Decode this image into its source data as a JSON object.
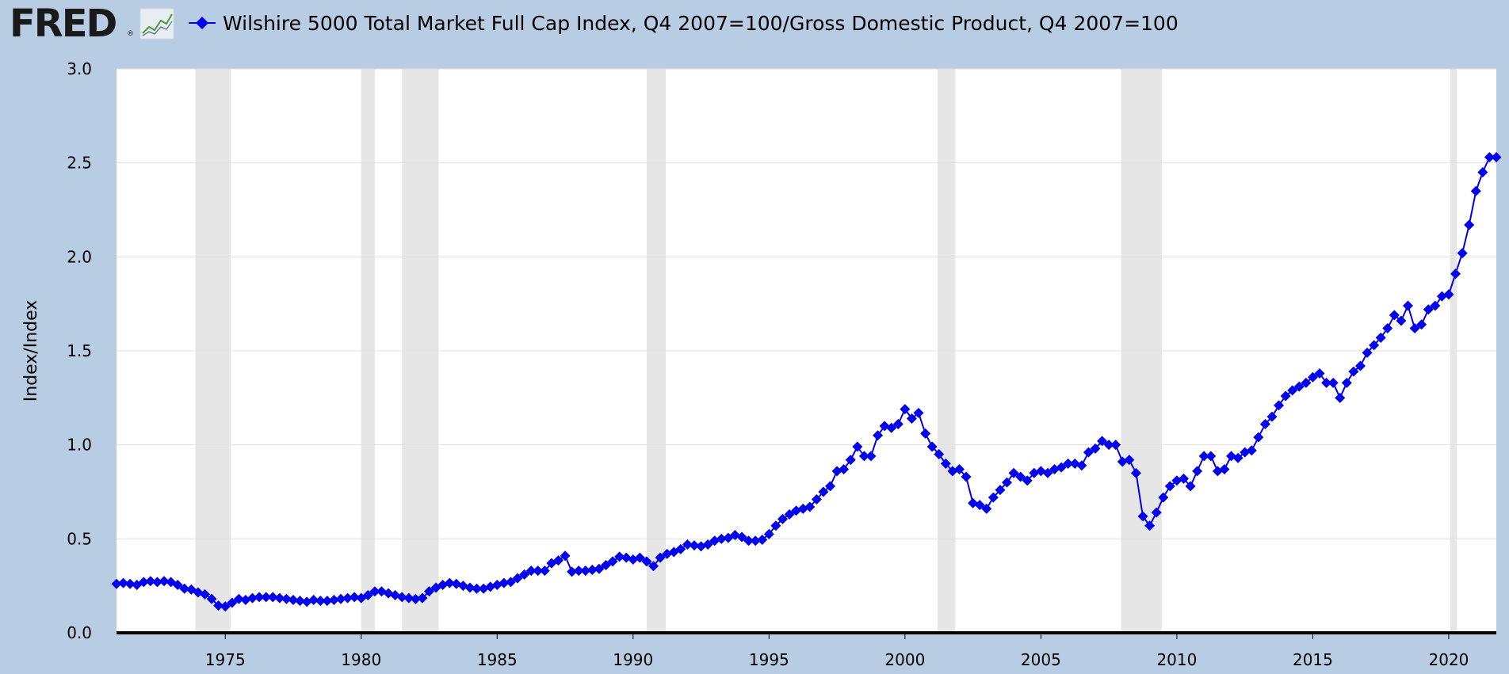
{
  "header": {
    "logo_text": "FRED",
    "logo_reg": "®",
    "legend_label": "Wilshire 5000 Total Market Full Cap Index, Q4 2007=100/Gross Domestic Product, Q4 2007=100"
  },
  "colors": {
    "background": "#b8cce4",
    "plot_bg": "#ffffff",
    "series": "#0000ee",
    "recession": "#e6e6e6",
    "grid": "#e0e0e0",
    "axis": "#000000"
  },
  "chart_data": {
    "type": "line",
    "ylabel": "Index/Index",
    "xlabel": "",
    "xlim": [
      1971.0,
      2021.75
    ],
    "ylim": [
      0,
      3.0
    ],
    "y_ticks": [
      "0.0",
      "0.5",
      "1.0",
      "1.5",
      "2.0",
      "2.5",
      "3.0"
    ],
    "x_ticks": [
      "1975",
      "1980",
      "1985",
      "1990",
      "1995",
      "2000",
      "2005",
      "2010",
      "2015",
      "2020"
    ],
    "grid": true,
    "recessions": [
      [
        1973.9,
        1975.2
      ],
      [
        1980.0,
        1980.5
      ],
      [
        1981.5,
        1982.85
      ],
      [
        1990.5,
        1991.2
      ],
      [
        2001.2,
        2001.85
      ],
      [
        2007.95,
        2009.45
      ],
      [
        2020.05,
        2020.3
      ]
    ],
    "series": [
      {
        "name": "Wilshire 5000 Total Market Full Cap Index, Q4 2007=100/Gross Domestic Product, Q4 2007=100",
        "marker": "diamond",
        "x": [
          1971.0,
          1971.25,
          1971.5,
          1971.75,
          1972.0,
          1972.25,
          1972.5,
          1972.75,
          1973.0,
          1973.25,
          1973.5,
          1973.75,
          1974.0,
          1974.25,
          1974.5,
          1974.75,
          1975.0,
          1975.25,
          1975.5,
          1975.75,
          1976.0,
          1976.25,
          1976.5,
          1976.75,
          1977.0,
          1977.25,
          1977.5,
          1977.75,
          1978.0,
          1978.25,
          1978.5,
          1978.75,
          1979.0,
          1979.25,
          1979.5,
          1979.75,
          1980.0,
          1980.25,
          1980.5,
          1980.75,
          1981.0,
          1981.25,
          1981.5,
          1981.75,
          1982.0,
          1982.25,
          1982.5,
          1982.75,
          1983.0,
          1983.25,
          1983.5,
          1983.75,
          1984.0,
          1984.25,
          1984.5,
          1984.75,
          1985.0,
          1985.25,
          1985.5,
          1985.75,
          1986.0,
          1986.25,
          1986.5,
          1986.75,
          1987.0,
          1987.25,
          1987.5,
          1987.75,
          1988.0,
          1988.25,
          1988.5,
          1988.75,
          1989.0,
          1989.25,
          1989.5,
          1989.75,
          1990.0,
          1990.25,
          1990.5,
          1990.75,
          1991.0,
          1991.25,
          1991.5,
          1991.75,
          1992.0,
          1992.25,
          1992.5,
          1992.75,
          1993.0,
          1993.25,
          1993.5,
          1993.75,
          1994.0,
          1994.25,
          1994.5,
          1994.75,
          1995.0,
          1995.25,
          1995.5,
          1995.75,
          1996.0,
          1996.25,
          1996.5,
          1996.75,
          1997.0,
          1997.25,
          1997.5,
          1997.75,
          1998.0,
          1998.25,
          1998.5,
          1998.75,
          1999.0,
          1999.25,
          1999.5,
          1999.75,
          2000.0,
          2000.25,
          2000.5,
          2000.75,
          2001.0,
          2001.25,
          2001.5,
          2001.75,
          2002.0,
          2002.25,
          2002.5,
          2002.75,
          2003.0,
          2003.25,
          2003.5,
          2003.75,
          2004.0,
          2004.25,
          2004.5,
          2004.75,
          2005.0,
          2005.25,
          2005.5,
          2005.75,
          2006.0,
          2006.25,
          2006.5,
          2006.75,
          2007.0,
          2007.25,
          2007.5,
          2007.75,
          2008.0,
          2008.25,
          2008.5,
          2008.75,
          2009.0,
          2009.25,
          2009.5,
          2009.75,
          2010.0,
          2010.25,
          2010.5,
          2010.75,
          2011.0,
          2011.25,
          2011.5,
          2011.75,
          2012.0,
          2012.25,
          2012.5,
          2012.75,
          2013.0,
          2013.25,
          2013.5,
          2013.75,
          2014.0,
          2014.25,
          2014.5,
          2014.75,
          2015.0,
          2015.25,
          2015.5,
          2015.75,
          2016.0,
          2016.25,
          2016.5,
          2016.75,
          2017.0,
          2017.25,
          2017.5,
          2017.75,
          2018.0,
          2018.25,
          2018.5,
          2018.75,
          2019.0,
          2019.25,
          2019.5,
          2019.75,
          2020.0,
          2020.25,
          2020.5,
          2020.75,
          2021.0,
          2021.25,
          2021.5,
          2021.75
        ],
        "y": [
          0.26,
          0.265,
          0.26,
          0.255,
          0.27,
          0.275,
          0.27,
          0.275,
          0.27,
          0.255,
          0.235,
          0.23,
          0.215,
          0.205,
          0.18,
          0.145,
          0.14,
          0.16,
          0.18,
          0.175,
          0.185,
          0.19,
          0.19,
          0.19,
          0.185,
          0.18,
          0.175,
          0.17,
          0.165,
          0.175,
          0.17,
          0.17,
          0.175,
          0.18,
          0.185,
          0.19,
          0.185,
          0.2,
          0.22,
          0.22,
          0.21,
          0.2,
          0.19,
          0.185,
          0.18,
          0.185,
          0.22,
          0.24,
          0.255,
          0.265,
          0.26,
          0.25,
          0.24,
          0.235,
          0.235,
          0.245,
          0.255,
          0.265,
          0.27,
          0.29,
          0.31,
          0.33,
          0.33,
          0.33,
          0.37,
          0.385,
          0.41,
          0.325,
          0.33,
          0.33,
          0.335,
          0.34,
          0.36,
          0.38,
          0.405,
          0.4,
          0.39,
          0.4,
          0.38,
          0.355,
          0.4,
          0.42,
          0.43,
          0.445,
          0.47,
          0.465,
          0.46,
          0.47,
          0.49,
          0.5,
          0.505,
          0.52,
          0.51,
          0.49,
          0.49,
          0.495,
          0.525,
          0.57,
          0.605,
          0.63,
          0.65,
          0.66,
          0.67,
          0.71,
          0.75,
          0.78,
          0.86,
          0.87,
          0.92,
          0.99,
          0.94,
          0.94,
          1.05,
          1.1,
          1.09,
          1.11,
          1.19,
          1.14,
          1.17,
          1.06,
          0.99,
          0.95,
          0.9,
          0.86,
          0.87,
          0.83,
          0.69,
          0.68,
          0.66,
          0.72,
          0.76,
          0.8,
          0.85,
          0.83,
          0.81,
          0.85,
          0.86,
          0.85,
          0.87,
          0.88,
          0.9,
          0.9,
          0.89,
          0.96,
          0.98,
          1.02,
          1.0,
          1.0,
          0.91,
          0.92,
          0.85,
          0.62,
          0.57,
          0.64,
          0.72,
          0.78,
          0.81,
          0.82,
          0.78,
          0.86,
          0.94,
          0.94,
          0.86,
          0.87,
          0.94,
          0.93,
          0.96,
          0.97,
          1.04,
          1.11,
          1.15,
          1.21,
          1.26,
          1.29,
          1.31,
          1.33,
          1.36,
          1.38,
          1.33,
          1.33,
          1.25,
          1.33,
          1.39,
          1.42,
          1.49,
          1.53,
          1.57,
          1.62,
          1.69,
          1.66,
          1.74,
          1.62,
          1.64,
          1.72,
          1.74,
          1.79,
          1.8,
          1.91,
          2.02,
          2.17,
          2.35,
          2.45,
          2.53,
          2.53
        ]
      }
    ]
  }
}
